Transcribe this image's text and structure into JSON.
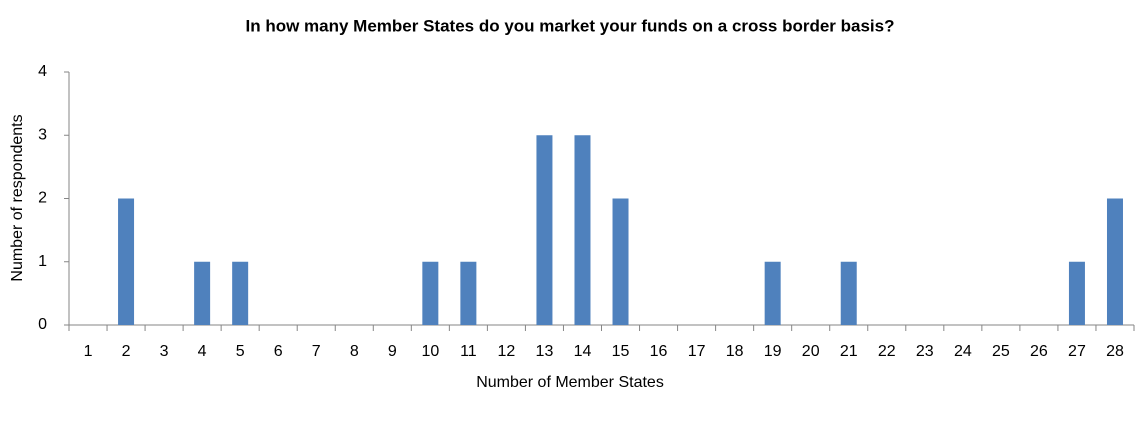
{
  "chart_data": {
    "type": "bar",
    "title": "In how many Member States do you market your funds on a cross border basis?",
    "x_label": "Number of Member States",
    "y_label": "Number of respondents",
    "categories": [
      "1",
      "2",
      "3",
      "4",
      "5",
      "6",
      "7",
      "8",
      "9",
      "10",
      "11",
      "12",
      "13",
      "14",
      "15",
      "16",
      "17",
      "18",
      "19",
      "20",
      "21",
      "22",
      "23",
      "24",
      "25",
      "26",
      "27",
      "28"
    ],
    "values": [
      0,
      2,
      0,
      1,
      1,
      0,
      0,
      0,
      0,
      1,
      1,
      0,
      3,
      3,
      2,
      0,
      0,
      0,
      1,
      0,
      1,
      0,
      0,
      0,
      0,
      0,
      1,
      2
    ],
    "color": "#4f81bd",
    "ylim": [
      0,
      4
    ],
    "yticks": [
      0,
      1,
      2,
      3,
      4
    ],
    "grid": false
  }
}
